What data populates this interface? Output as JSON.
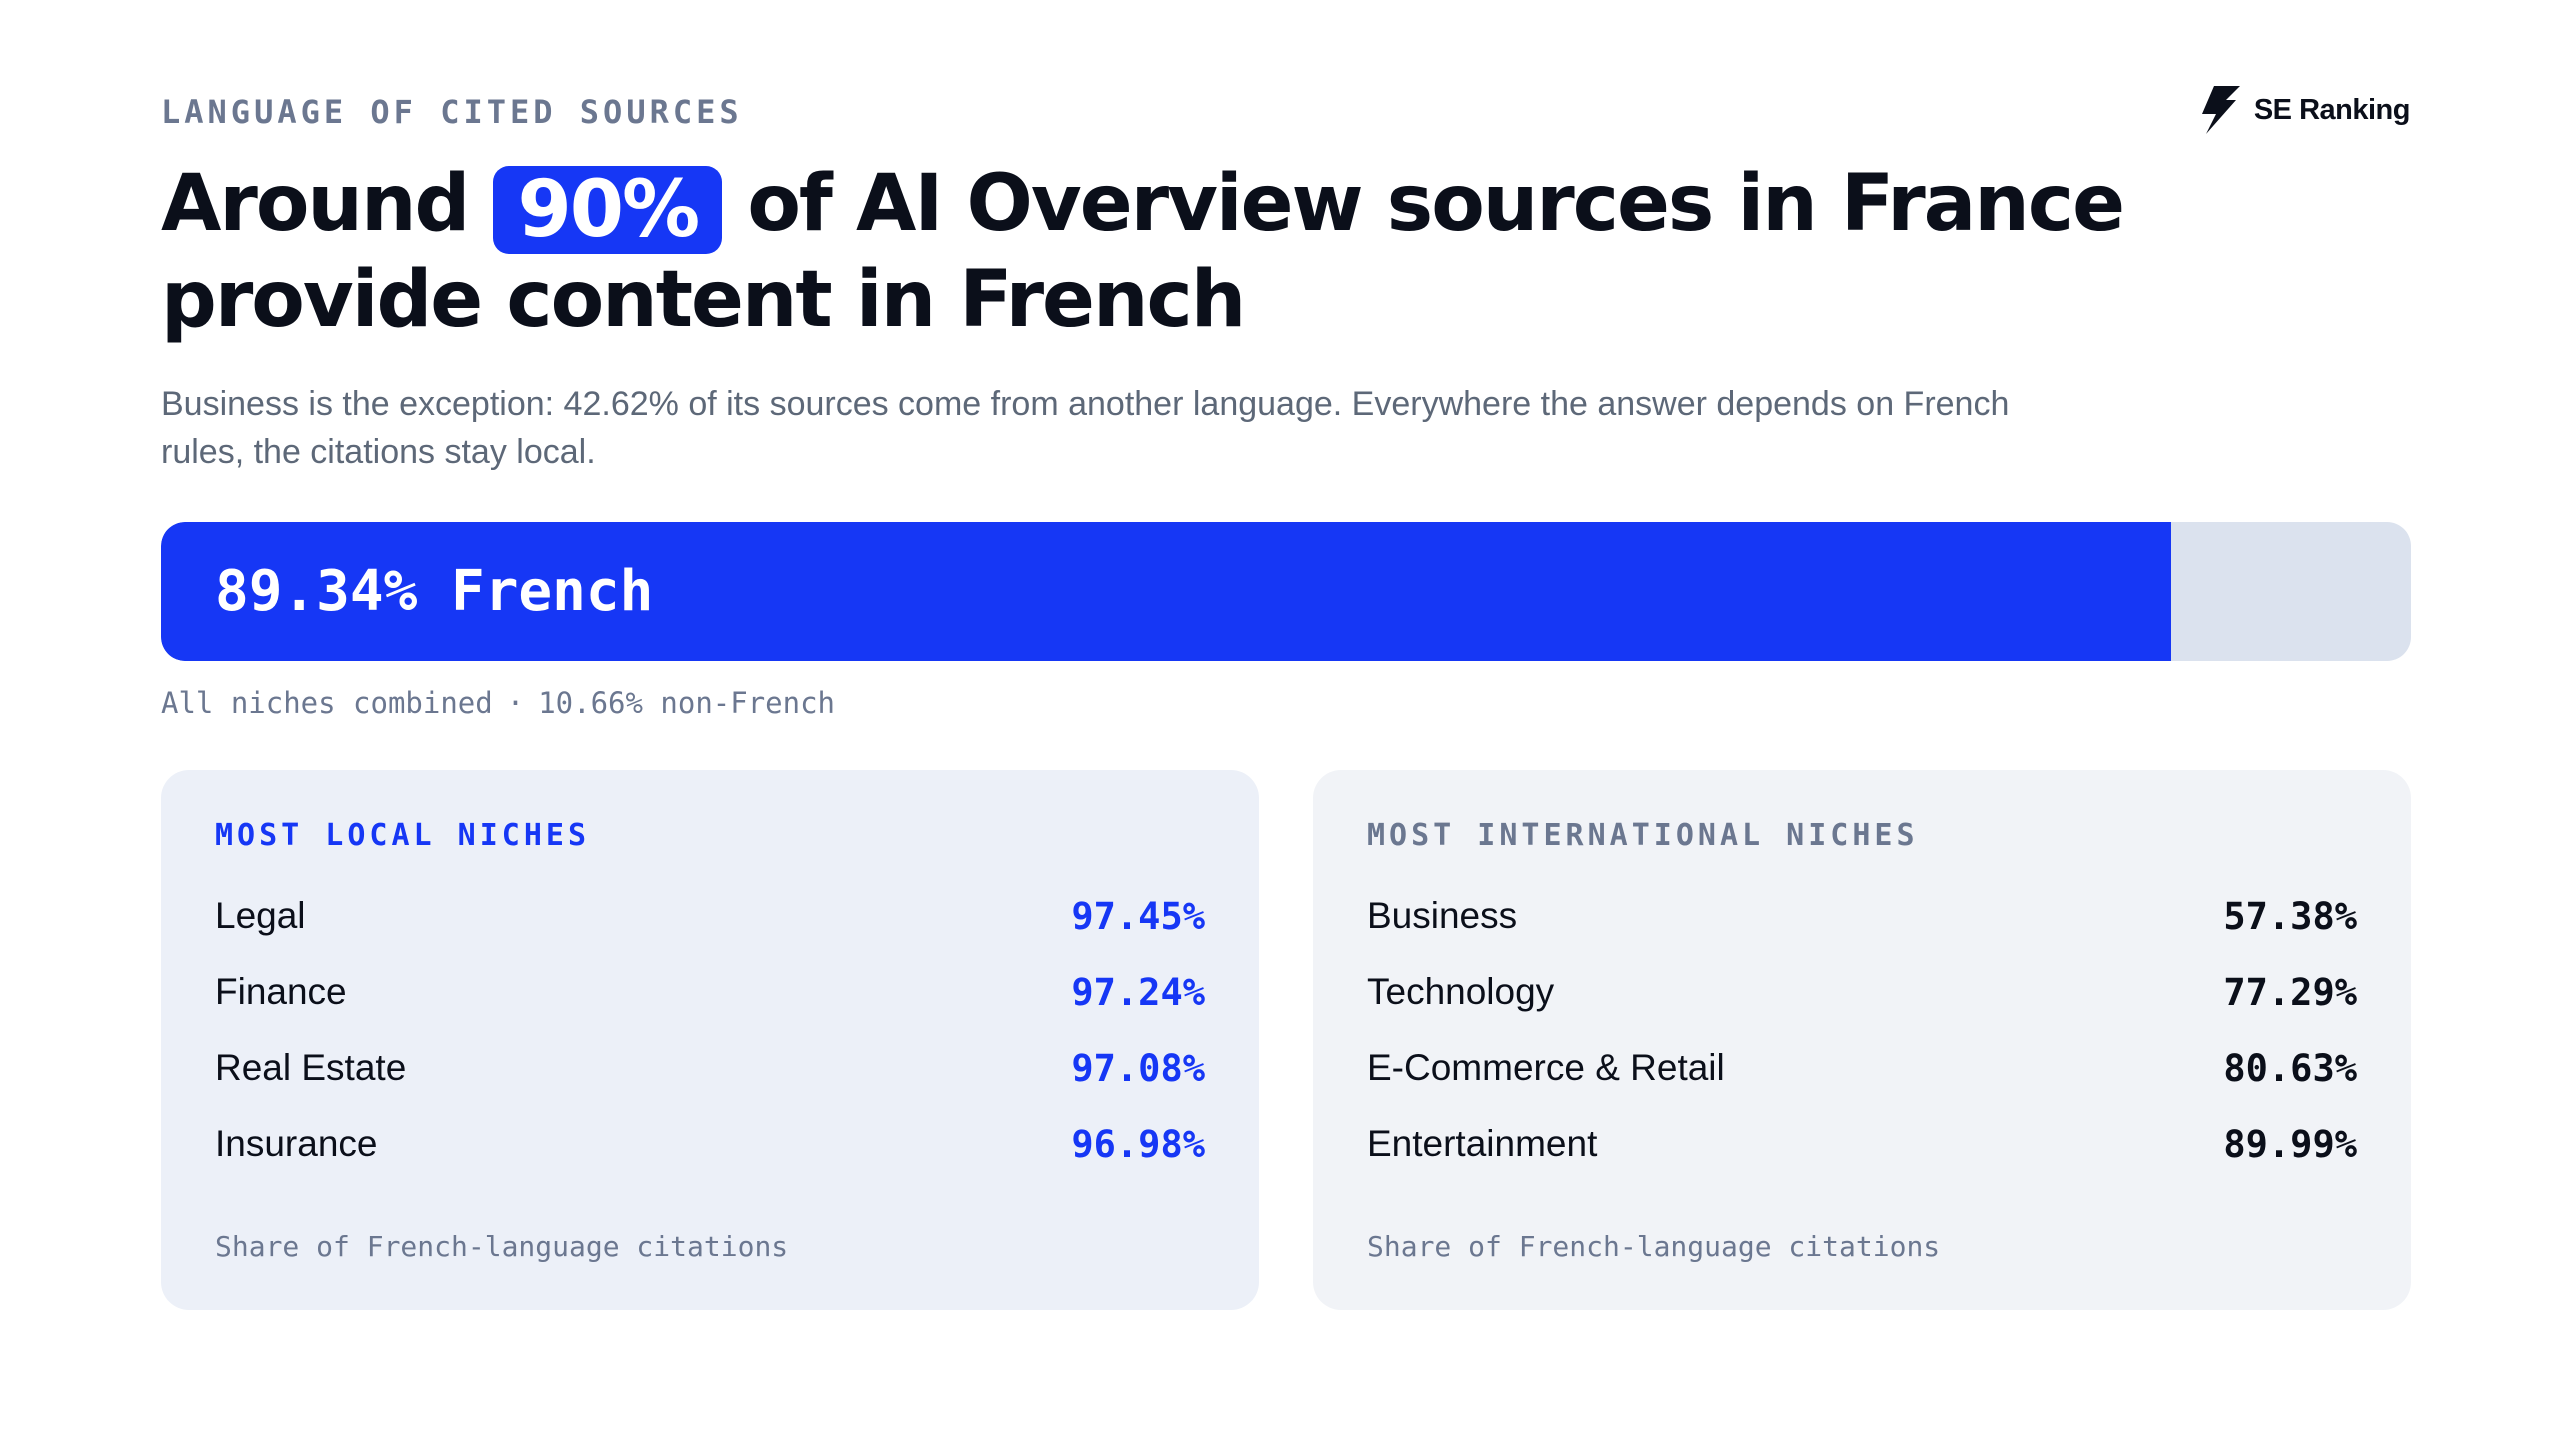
{
  "eyebrow": "LANGUAGE OF CITED SOURCES",
  "brand": {
    "name": "SE Ranking",
    "icon": "se-ranking-bolt-logo"
  },
  "headline": {
    "before": "Around",
    "highlight": "90%",
    "after": "of AI Overview sources in France provide content in French"
  },
  "subtitle": "Business is the exception: 42.62% of its sources come from another language. Everywhere the answer depends on French rules, the citations stay local.",
  "overall_bar": {
    "label": "89.34% French",
    "french_percent": 89.34,
    "caption_left": "All niches combined",
    "caption_sep": "·",
    "caption_right": "10.66% non-French"
  },
  "local_niches": {
    "title": "MOST LOCAL NICHES",
    "rows": [
      {
        "label": "Legal",
        "value": "97.45%"
      },
      {
        "label": "Finance",
        "value": "97.24%"
      },
      {
        "label": "Real Estate",
        "value": "97.08%"
      },
      {
        "label": "Insurance",
        "value": "96.98%"
      }
    ],
    "footnote": "Share of French-language citations"
  },
  "international_niches": {
    "title": "MOST INTERNATIONAL NICHES",
    "rows": [
      {
        "label": "Business",
        "value": "57.38%"
      },
      {
        "label": "Technology",
        "value": "77.29%"
      },
      {
        "label": "E-Commerce & Retail",
        "value": "80.63%"
      },
      {
        "label": "Entertainment",
        "value": "89.99%"
      }
    ],
    "footnote": "Share of French-language citations"
  },
  "colors": {
    "accent": "#1637f5",
    "bar_track": "#dbe2ee",
    "muted": "#6b7790",
    "text": "#0b0f1a"
  }
}
